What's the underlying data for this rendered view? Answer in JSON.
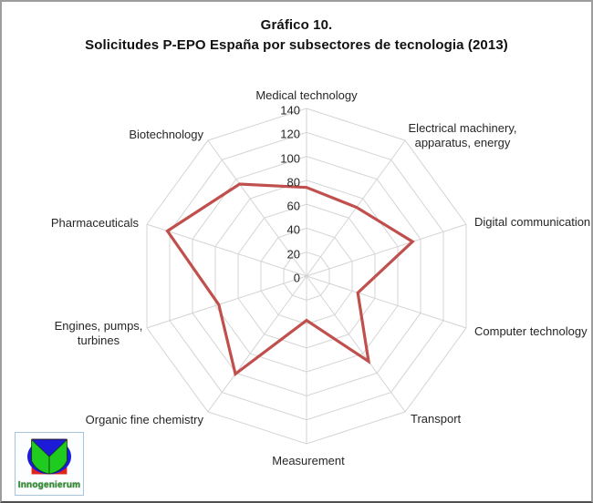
{
  "title": {
    "line1": "Gráfico 10.",
    "line2": "Solicitudes P-EPO España por subsectores de tecnologia (2013)"
  },
  "chart_data": {
    "type": "radar",
    "categories": [
      "Medical technology",
      "Electrical machinery, apparatus, energy",
      "Digital communication",
      "Computer technology",
      "Transport",
      "Measurement",
      "Organic fine chemistry",
      "Engines, pumps, turbines",
      "Pharmaceuticals",
      "Biotechnology"
    ],
    "series": [
      {
        "values": [
          74,
          71,
          93,
          45,
          88,
          37,
          101,
          77,
          122,
          95
        ],
        "color": "#C0504D"
      }
    ],
    "rmin": 0,
    "rmax": 140,
    "tick_interval": 20,
    "ticks": [
      140,
      120,
      100,
      80,
      60,
      40,
      20,
      0
    ],
    "grid_color": "#d4d4d4",
    "grid": "on",
    "legend_position": "none"
  },
  "logo": {
    "text": "Innogenierum",
    "colors": {
      "red": "#e3231b",
      "blue": "#1b1bd8",
      "green": "#1ecb1e",
      "edge": "#143a10",
      "border": "#a9c4dd"
    }
  }
}
